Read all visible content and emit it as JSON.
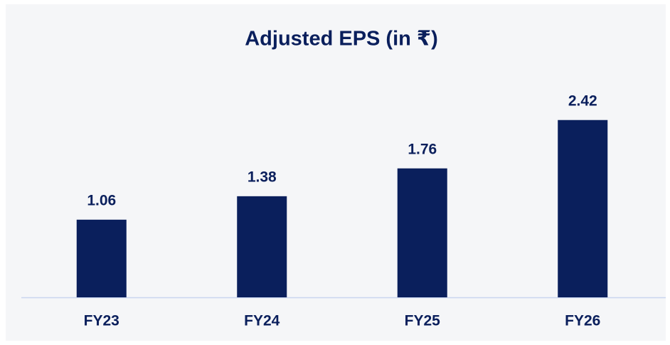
{
  "chart_data": {
    "type": "bar",
    "title": "Adjusted EPS (in ₹)",
    "categories": [
      "FY23",
      "FY24",
      "FY25",
      "FY26"
    ],
    "values": [
      1.06,
      1.38,
      1.76,
      2.42
    ],
    "color": "#0a1f5c"
  }
}
